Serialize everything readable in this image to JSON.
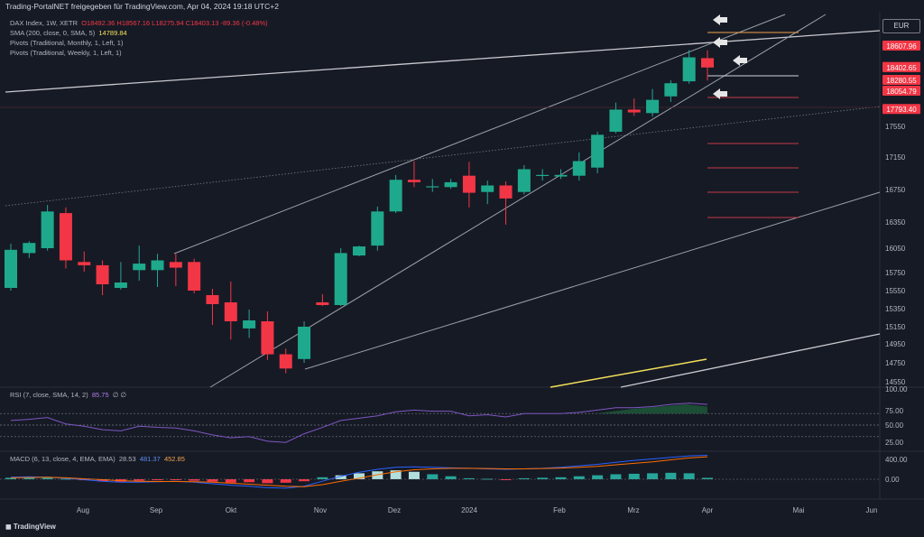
{
  "header": {
    "text": "Trading-PortalNET freigegeben für TradingView.com, Apr 04, 2024 19:18 UTC+2"
  },
  "legend": {
    "main_name": "DAX Index, 1W, XETR",
    "ohlc": "O18492.36  H18567.16  L18275.94  C18403.13  -89.36 (-0.48%)",
    "sma_label": "SMA (200, close, 0, SMA, 5)",
    "sma_value": "14789.84",
    "pivot_monthly": "Pivots (Traditional, Monthly, 1, Left, 1)",
    "pivot_weekly": "Pivots (Traditional, Weekly, 1, Left, 1)",
    "rsi_label": "RSI (7, close, SMA, 14, 2)",
    "rsi_value": "85.75",
    "rsi_extra": "∅  ∅",
    "macd_label": "MACD (6, 13, close, 4, EMA, EMA)",
    "macd_hist": "28.53",
    "macd_line": "481.37",
    "macd_signal": "452.85"
  },
  "currency": "EUR",
  "footer": "TradingView",
  "chart_data": {
    "type": "candlestick",
    "title": "DAX Index, 1W, XETR",
    "y_axis": {
      "ticks": [
        14550,
        14750,
        14950,
        15150,
        15350,
        15550,
        15750,
        16050,
        16350,
        16750,
        17150,
        17550
      ],
      "range": [
        14550,
        18790
      ]
    },
    "x_axis": {
      "ticks": [
        "Aug",
        "Sep",
        "Okt",
        "Nov",
        "Dez",
        "2024",
        "Feb",
        "Mrz",
        "Apr",
        "Mai",
        "Jun"
      ]
    },
    "price_labels": [
      {
        "value": 18607.96,
        "text": "18607.96",
        "color": "#f23645"
      },
      {
        "value": 18403.13,
        "text": "18403.13",
        "color": "#f23645"
      },
      {
        "value": 18402.65,
        "text": "18402.65",
        "color": "#f23645"
      },
      {
        "value": 18280.55,
        "text": "18280.55",
        "color": "#f23645"
      },
      {
        "value": 18054.79,
        "text": "18054.79",
        "color": "#f23645"
      },
      {
        "value": 17793.4,
        "text": "17793.40",
        "color": "#f23645"
      }
    ],
    "candles": [
      {
        "o": 15580,
        "h": 16100,
        "l": 15550,
        "c": 16030
      },
      {
        "o": 15990,
        "h": 16130,
        "l": 15930,
        "c": 16110
      },
      {
        "o": 16050,
        "h": 16560,
        "l": 16020,
        "c": 16480
      },
      {
        "o": 16460,
        "h": 16530,
        "l": 15800,
        "c": 15900
      },
      {
        "o": 15880,
        "h": 16010,
        "l": 15760,
        "c": 15840
      },
      {
        "o": 15840,
        "h": 15900,
        "l": 15500,
        "c": 15620
      },
      {
        "o": 15580,
        "h": 15880,
        "l": 15560,
        "c": 15640
      },
      {
        "o": 15780,
        "h": 16080,
        "l": 15660,
        "c": 15860
      },
      {
        "o": 15780,
        "h": 15980,
        "l": 15590,
        "c": 15900
      },
      {
        "o": 15880,
        "h": 15980,
        "l": 15600,
        "c": 15810
      },
      {
        "o": 15880,
        "h": 15920,
        "l": 15520,
        "c": 15550
      },
      {
        "o": 15500,
        "h": 15570,
        "l": 15170,
        "c": 15400
      },
      {
        "o": 15420,
        "h": 15650,
        "l": 15000,
        "c": 15210
      },
      {
        "o": 15130,
        "h": 15340,
        "l": 15020,
        "c": 15220
      },
      {
        "o": 15210,
        "h": 15320,
        "l": 14780,
        "c": 14840
      },
      {
        "o": 14840,
        "h": 14900,
        "l": 14640,
        "c": 14690
      },
      {
        "o": 14790,
        "h": 15210,
        "l": 14750,
        "c": 15150
      },
      {
        "o": 15420,
        "h": 15510,
        "l": 15380,
        "c": 15390
      },
      {
        "o": 15390,
        "h": 16050,
        "l": 15380,
        "c": 15990
      },
      {
        "o": 15960,
        "h": 16080,
        "l": 15950,
        "c": 16070
      },
      {
        "o": 16080,
        "h": 16540,
        "l": 16020,
        "c": 16480
      },
      {
        "o": 16480,
        "h": 16930,
        "l": 16460,
        "c": 16870
      },
      {
        "o": 16870,
        "h": 17100,
        "l": 16780,
        "c": 16840
      },
      {
        "o": 16790,
        "h": 16880,
        "l": 16720,
        "c": 16790
      },
      {
        "o": 16780,
        "h": 16880,
        "l": 16760,
        "c": 16840
      },
      {
        "o": 16920,
        "h": 17090,
        "l": 16530,
        "c": 16710
      },
      {
        "o": 16720,
        "h": 16860,
        "l": 16570,
        "c": 16800
      },
      {
        "o": 16800,
        "h": 16850,
        "l": 16320,
        "c": 16640
      },
      {
        "o": 16720,
        "h": 17050,
        "l": 16690,
        "c": 17000
      },
      {
        "o": 16920,
        "h": 17000,
        "l": 16860,
        "c": 16930
      },
      {
        "o": 16910,
        "h": 17000,
        "l": 16880,
        "c": 16930
      },
      {
        "o": 16920,
        "h": 17210,
        "l": 16860,
        "c": 17100
      },
      {
        "o": 17020,
        "h": 17480,
        "l": 16950,
        "c": 17440
      },
      {
        "o": 17480,
        "h": 17890,
        "l": 17460,
        "c": 17790
      },
      {
        "o": 17790,
        "h": 17950,
        "l": 17700,
        "c": 17750
      },
      {
        "o": 17740,
        "h": 18100,
        "l": 17690,
        "c": 17930
      },
      {
        "o": 17980,
        "h": 18280,
        "l": 17900,
        "c": 18220
      },
      {
        "o": 18260,
        "h": 18570,
        "l": 18210,
        "c": 18500
      },
      {
        "o": 18492.36,
        "h": 18567.16,
        "l": 18275.94,
        "c": 18403.13
      }
    ],
    "rsi_axis_ticks": [
      "100.00",
      "75.00",
      "50.00",
      "25.00"
    ],
    "macd_axis_ticks": [
      "400.00",
      "0.00"
    ]
  }
}
